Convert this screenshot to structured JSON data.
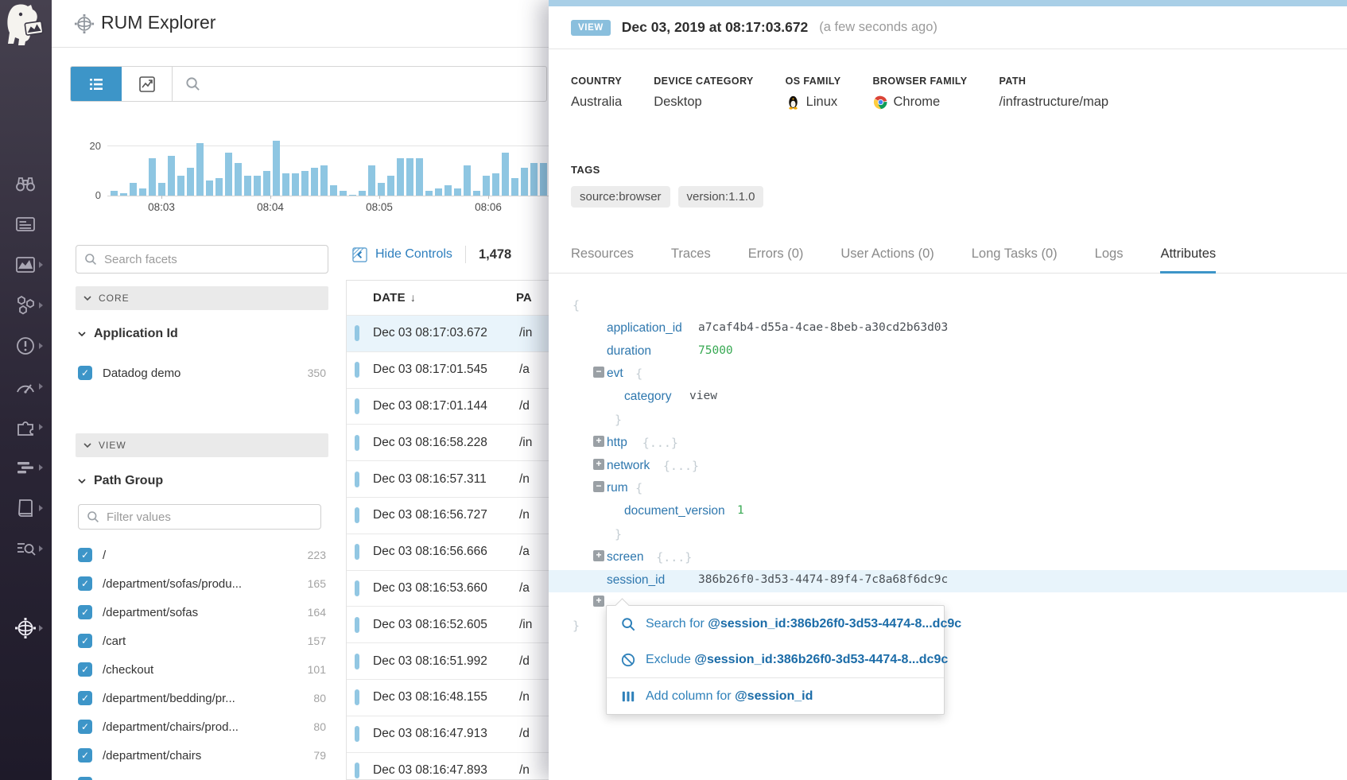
{
  "header": {
    "title": "RUM Explorer"
  },
  "sidebar": {
    "icons": [
      {
        "icon": "binoculars-icon",
        "submenu": false
      },
      {
        "icon": "events-icon",
        "submenu": false
      },
      {
        "icon": "dashboards-icon",
        "submenu": true
      },
      {
        "icon": "infrastructure-icon",
        "submenu": true
      },
      {
        "icon": "monitors-icon",
        "submenu": true
      },
      {
        "icon": "metrics-icon",
        "submenu": true
      },
      {
        "icon": "integrations-icon",
        "submenu": true
      },
      {
        "icon": "apm-icon",
        "submenu": true
      },
      {
        "icon": "notebooks-icon",
        "submenu": true
      },
      {
        "icon": "log-pipelines-icon",
        "submenu": true
      }
    ],
    "bottom_icon": {
      "icon": "rum-globe-icon",
      "submenu": true,
      "active": true
    }
  },
  "toolbar": {
    "search_placeholder": ""
  },
  "chart_data": {
    "type": "bar",
    "title": "",
    "xlabel": "",
    "ylabel": "",
    "yticks": [
      "20",
      "0"
    ],
    "ylim": [
      0,
      20
    ],
    "bar_color": "#8ec6e2",
    "x_tick_labels": [
      "08:03",
      "08:04",
      "08:05",
      "08:06"
    ],
    "values": [
      2,
      1,
      5,
      3,
      15,
      5,
      16,
      8,
      11,
      21,
      6,
      7,
      17,
      13,
      8,
      8,
      10,
      22,
      9,
      9,
      10,
      11,
      12,
      4,
      2,
      0,
      2,
      12,
      5,
      8,
      15,
      15,
      15,
      2,
      3,
      4,
      3,
      12,
      2,
      8,
      9,
      17,
      7,
      11,
      13,
      13
    ]
  },
  "facets": {
    "search_placeholder": "Search facets",
    "core_label": "CORE",
    "application_id": {
      "title": "Application Id",
      "items": [
        {
          "label": "Datadog demo",
          "count": "350",
          "checked": true
        }
      ]
    },
    "view_label": "VIEW",
    "path_group": {
      "title": "Path Group",
      "filter_placeholder": "Filter values",
      "items": [
        {
          "label": "/",
          "count": "223",
          "checked": true
        },
        {
          "label": "/department/sofas/produ...",
          "count": "165",
          "checked": true
        },
        {
          "label": "/department/sofas",
          "count": "164",
          "checked": true
        },
        {
          "label": "/cart",
          "count": "157",
          "checked": true
        },
        {
          "label": "/checkout",
          "count": "101",
          "checked": true
        },
        {
          "label": "/department/bedding/pr...",
          "count": "80",
          "checked": true
        },
        {
          "label": "/department/chairs/prod...",
          "count": "80",
          "checked": true
        },
        {
          "label": "/department/chairs",
          "count": "79",
          "checked": true
        },
        {
          "label": "",
          "count": "",
          "checked": true
        }
      ]
    }
  },
  "table": {
    "hide_controls_label": "Hide Controls",
    "count": "1,478",
    "date_column": "DATE",
    "sort_arrow": "↓",
    "path_column": "PA",
    "rows": [
      {
        "date": "Dec 03 08:17:03.672",
        "path": "/in",
        "selected": true
      },
      {
        "date": "Dec 03 08:17:01.545",
        "path": "/a",
        "selected": false
      },
      {
        "date": "Dec 03 08:17:01.144",
        "path": "/d",
        "selected": false
      },
      {
        "date": "Dec 03 08:16:58.228",
        "path": "/in",
        "selected": false
      },
      {
        "date": "Dec 03 08:16:57.311",
        "path": "/n",
        "selected": false
      },
      {
        "date": "Dec 03 08:16:56.727",
        "path": "/n",
        "selected": false
      },
      {
        "date": "Dec 03 08:16:56.666",
        "path": "/a",
        "selected": false
      },
      {
        "date": "Dec 03 08:16:53.660",
        "path": "/a",
        "selected": false
      },
      {
        "date": "Dec 03 08:16:52.605",
        "path": "/in",
        "selected": false
      },
      {
        "date": "Dec 03 08:16:51.992",
        "path": "/d",
        "selected": false
      },
      {
        "date": "Dec 03 08:16:48.155",
        "path": "/n",
        "selected": false
      },
      {
        "date": "Dec 03 08:16:47.913",
        "path": "/d",
        "selected": false
      },
      {
        "date": "Dec 03 08:16:47.893",
        "path": "/n",
        "selected": false
      }
    ]
  },
  "detail": {
    "badge": "VIEW",
    "timestamp": "Dec 03, 2019 at 08:17:03.672",
    "relative_time": "(a few seconds ago)",
    "meta": [
      {
        "label": "COUNTRY",
        "value": "Australia",
        "icon": ""
      },
      {
        "label": "DEVICE CATEGORY",
        "value": "Desktop",
        "icon": ""
      },
      {
        "label": "OS FAMILY",
        "value": "Linux",
        "icon": "linux-icon"
      },
      {
        "label": "BROWSER FAMILY",
        "value": "Chrome",
        "icon": "chrome-icon"
      },
      {
        "label": "PATH",
        "value": "/infrastructure/map",
        "icon": ""
      }
    ],
    "tags_label": "TAGS",
    "tags": [
      "source:browser",
      "version:1.1.0"
    ],
    "tabs": [
      {
        "label": "Resources",
        "active": false
      },
      {
        "label": "Traces",
        "active": false
      },
      {
        "label": "Errors (0)",
        "active": false
      },
      {
        "label": "User Actions (0)",
        "active": false
      },
      {
        "label": "Long Tasks (0)",
        "active": false
      },
      {
        "label": "Logs",
        "active": false
      },
      {
        "label": "Attributes",
        "active": true
      }
    ],
    "attributes": [
      {
        "type": "brace",
        "text": "{",
        "pos": "b0"
      },
      {
        "type": "kv",
        "key": "application_id",
        "value": "a7caf4b4-d55a-4cae-8beb-a30cd2b63d03",
        "valueType": "string",
        "vcol": "a"
      },
      {
        "type": "kv",
        "key": "duration",
        "value": "75000",
        "valueType": "number",
        "vcol": "a"
      },
      {
        "type": "node-open",
        "key": "evt"
      },
      {
        "type": "kv",
        "key": "category",
        "value": "view",
        "valueType": "string",
        "vcol": "b",
        "indent": 2
      },
      {
        "type": "brace",
        "text": "}",
        "pos": "b1"
      },
      {
        "type": "node-collapsed",
        "key": "http"
      },
      {
        "type": "node-collapsed",
        "key": "network"
      },
      {
        "type": "node-open",
        "key": "rum"
      },
      {
        "type": "kv",
        "key": "document_version",
        "value": "1",
        "valueType": "number",
        "vcol": "c",
        "indent": 2
      },
      {
        "type": "brace",
        "text": "}",
        "pos": "b1"
      },
      {
        "type": "node-collapsed",
        "key": "screen"
      },
      {
        "type": "kv",
        "key": "session_id",
        "value": "386b26f0-3d53-4474-89f4-7c8a68f6dc9c",
        "valueType": "string",
        "vcol": "a",
        "highlighted": true
      },
      {
        "type": "node-collapsed",
        "key": ""
      },
      {
        "type": "brace",
        "text": "}",
        "pos": "b0"
      }
    ],
    "context_menu": {
      "items": [
        {
          "icon": "search-icon",
          "prefix": "Search for ",
          "query": "@session_id:386b26f0-3d53-4474-8...dc9c"
        },
        {
          "icon": "exclude-icon",
          "prefix": "Exclude ",
          "query": "@session_id:386b26f0-3d53-4474-8...dc9c"
        },
        {
          "icon": "add-column-icon",
          "prefix": "Add column for ",
          "query": "@session_id"
        }
      ]
    }
  }
}
